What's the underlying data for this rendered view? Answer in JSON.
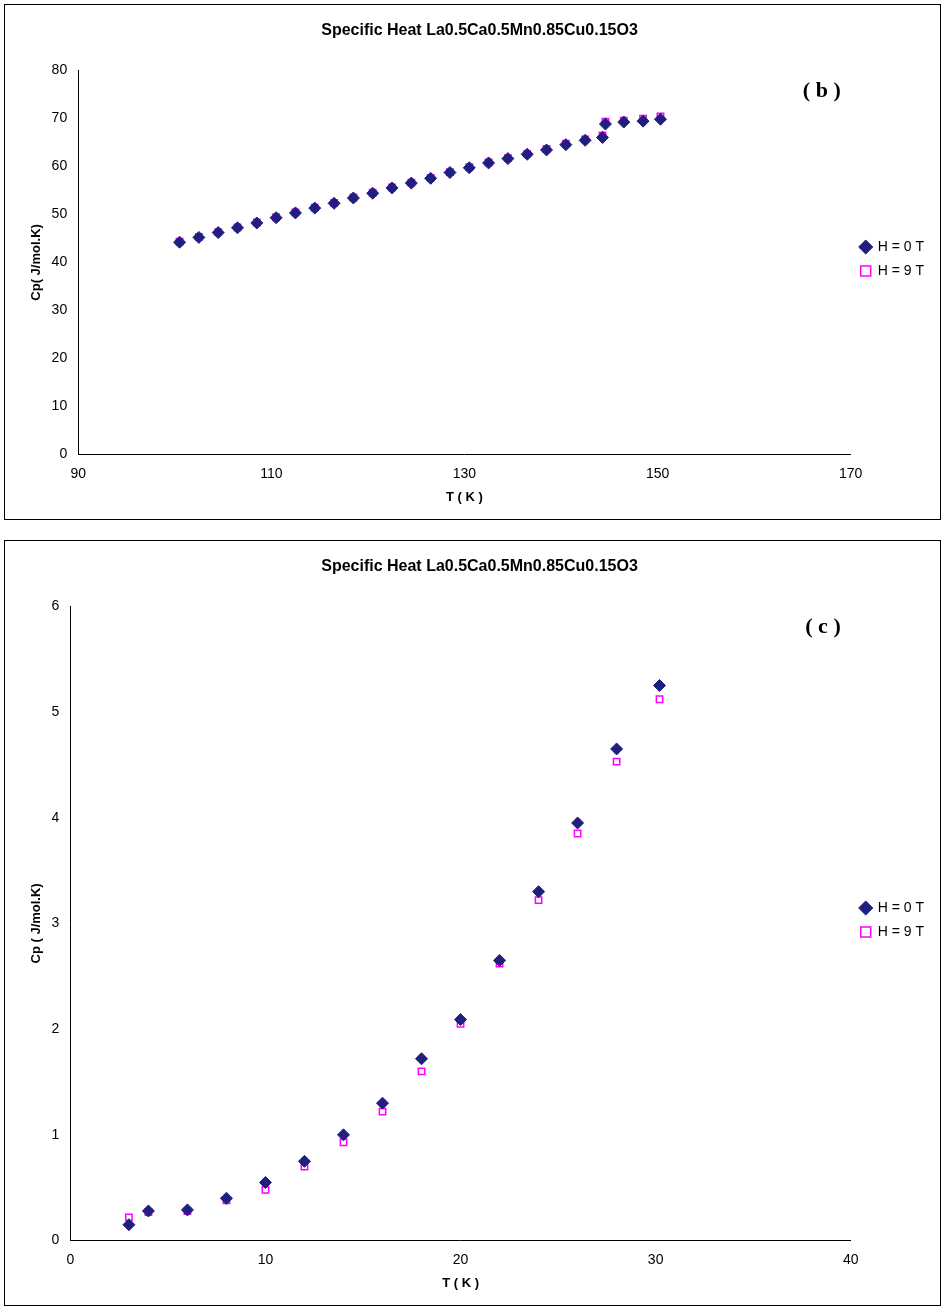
{
  "chart_data": [
    {
      "type": "scatter",
      "title": "Specific Heat La0.5Ca0.5Mn0.85Cu0.15O3",
      "x_label": "T ( K )",
      "y_label": "Cp( J/mol.K)",
      "annotations": [
        "( b )"
      ],
      "xlim": [
        90,
        170
      ],
      "xticks": [
        90,
        110,
        130,
        150,
        170
      ],
      "ylim": [
        0,
        80
      ],
      "yticks": [
        0,
        10,
        20,
        30,
        40,
        50,
        60,
        70,
        80
      ],
      "grid": false,
      "legend": "right",
      "x": [
        100.5,
        102.5,
        104.5,
        106.5,
        108.5,
        110.5,
        112.5,
        114.5,
        116.5,
        118.5,
        120.5,
        122.5,
        124.5,
        126.5,
        128.5,
        130.5,
        132.5,
        134.5,
        136.5,
        138.5,
        140.5,
        142.5,
        144.3,
        144.6,
        146.5,
        148.5,
        150.3
      ],
      "series": [
        {
          "name": "H = 0 T",
          "color": "#1f1f7f",
          "marker": "diamond",
          "values": [
            44.2,
            45.2,
            46.2,
            47.2,
            48.2,
            49.3,
            50.3,
            51.3,
            52.3,
            53.4,
            54.4,
            55.5,
            56.5,
            57.5,
            58.7,
            59.7,
            60.7,
            61.6,
            62.5,
            63.4,
            64.5,
            65.4,
            66.0,
            68.8,
            69.2,
            69.4,
            69.8
          ]
        },
        {
          "name": "H = 9 T",
          "color": "#ff00ff",
          "marker": "open_square",
          "values": [
            44.3,
            45.3,
            46.3,
            47.3,
            48.3,
            49.4,
            50.4,
            51.4,
            52.4,
            53.5,
            54.5,
            55.6,
            56.6,
            57.6,
            58.8,
            59.8,
            60.8,
            61.7,
            62.6,
            63.6,
            64.7,
            65.6,
            66.4,
            69.3,
            69.5,
            69.9,
            70.4
          ]
        }
      ]
    },
    {
      "type": "scatter",
      "title": "Specific Heat La0.5Ca0.5Mn0.85Cu0.15O3",
      "x_label": "T ( K )",
      "y_label": "Cp ( J/mol.K)",
      "annotations": [
        "( c )"
      ],
      "xlim": [
        0,
        40
      ],
      "xticks": [
        0,
        10,
        20,
        30,
        40
      ],
      "ylim": [
        0,
        6
      ],
      "yticks": [
        0,
        1,
        2,
        3,
        4,
        5,
        6
      ],
      "grid": false,
      "legend": "right",
      "x": [
        3,
        4,
        6,
        8,
        10,
        12,
        14,
        16,
        18,
        20,
        22,
        24,
        26,
        28,
        30.2
      ],
      "series": [
        {
          "name": "H = 0 T",
          "color": "#1f1f7f",
          "marker": "diamond",
          "values": [
            0.15,
            0.28,
            0.29,
            0.4,
            0.55,
            0.75,
            1.0,
            1.3,
            1.72,
            2.09,
            2.65,
            3.3,
            3.95,
            4.65,
            5.25
          ]
        },
        {
          "name": "H = 9 T",
          "color": "#ff00ff",
          "marker": "open_square",
          "values": [
            0.22,
            0.27,
            0.28,
            0.38,
            0.48,
            0.7,
            0.93,
            1.22,
            1.6,
            2.05,
            2.62,
            3.22,
            3.85,
            4.53,
            5.12
          ]
        }
      ]
    }
  ]
}
